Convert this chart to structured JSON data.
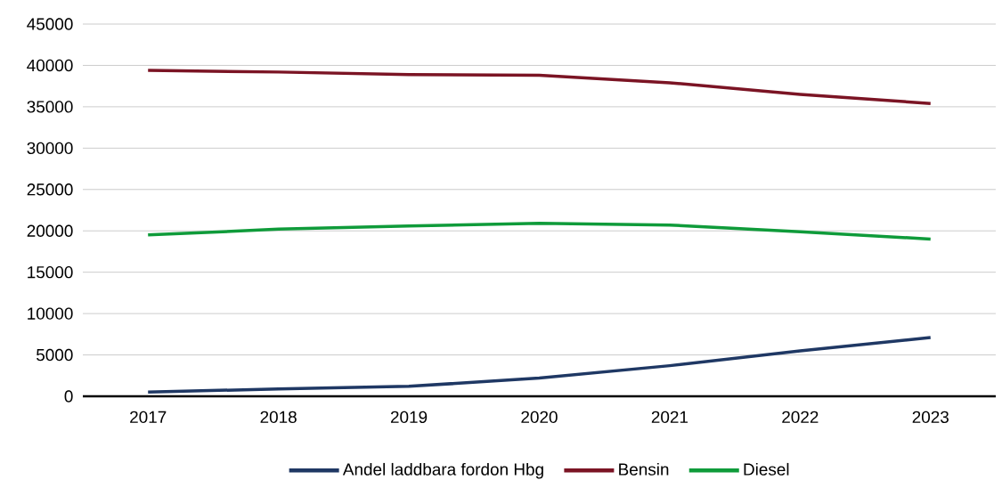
{
  "chart_data": {
    "type": "line",
    "categories": [
      "2017",
      "2018",
      "2019",
      "2020",
      "2021",
      "2022",
      "2023"
    ],
    "series": [
      {
        "name": "Andel laddbara fordon Hbg",
        "color": "#1f3864",
        "values": [
          500,
          900,
          1200,
          2200,
          3700,
          5500,
          7100
        ]
      },
      {
        "name": "Bensin",
        "color": "#7b1424",
        "values": [
          39400,
          39200,
          38900,
          38800,
          37900,
          36500,
          35400
        ]
      },
      {
        "name": "Diesel",
        "color": "#0f9b3a",
        "values": [
          19500,
          20200,
          20600,
          20900,
          20700,
          19900,
          19000
        ]
      }
    ],
    "ylim": [
      0,
      45000
    ],
    "yticks": [
      0,
      5000,
      10000,
      15000,
      20000,
      25000,
      30000,
      35000,
      40000,
      45000
    ],
    "grid": "y",
    "legend": "bottom",
    "marker": "none",
    "line_style": "solid"
  }
}
